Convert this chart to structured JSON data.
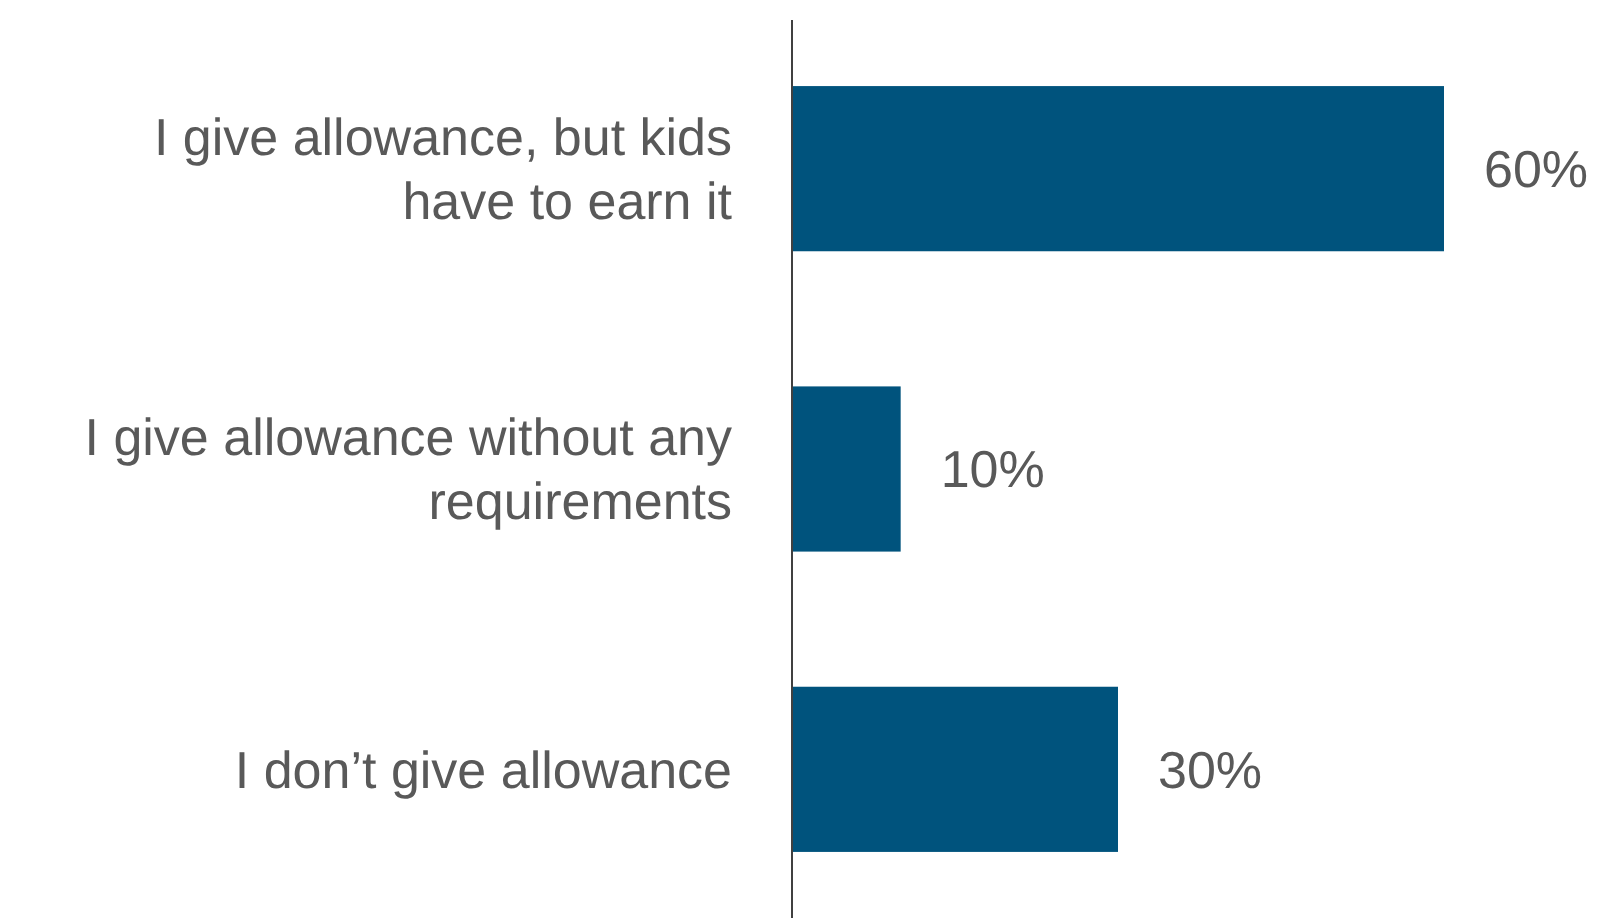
{
  "chart_data": {
    "type": "bar",
    "orientation": "horizontal",
    "categories": [
      "I give allowance, but kids have to earn it",
      "I give allowance without any requirements",
      "I don’t give allowance"
    ],
    "values": [
      60,
      10,
      30
    ],
    "value_labels": [
      "60%",
      "10%",
      "30%"
    ],
    "color": "#00537d"
  }
}
